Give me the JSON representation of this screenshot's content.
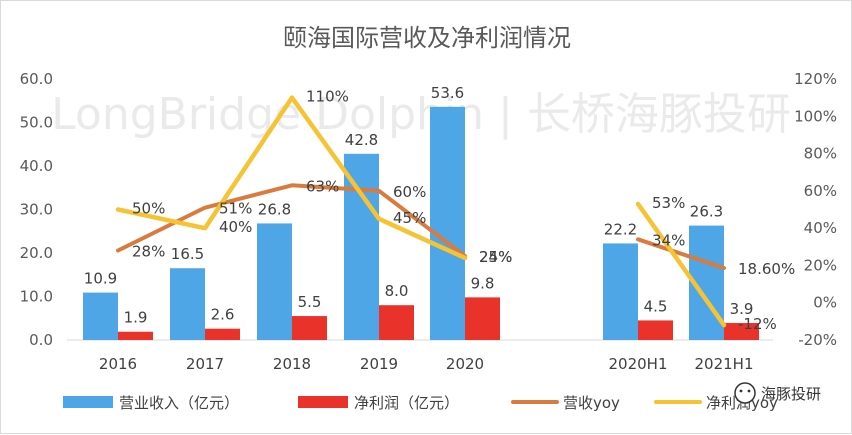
{
  "watermark": "LongBridge Dolphin | 长桥海豚投研",
  "wechat_label": "海豚投研",
  "chart_data": {
    "type": "bar",
    "title": "颐海国际营收及净利润情况",
    "categories": [
      "2016",
      "2017",
      "2018",
      "2019",
      "2020",
      "2020H1",
      "2021H1"
    ],
    "y_left_ticks": [
      "0.0",
      "10.0",
      "20.0",
      "30.0",
      "40.0",
      "50.0",
      "60.0"
    ],
    "y_right_ticks": [
      "-20%",
      "0%",
      "20%",
      "40%",
      "60%",
      "80%",
      "100%",
      "120%"
    ],
    "ylim_left": [
      0,
      60
    ],
    "ylim_right": [
      -20,
      120
    ],
    "series": [
      {
        "name": "营业收入（亿元）",
        "type": "bar",
        "color": "#4ea6e6",
        "values": [
          10.9,
          16.5,
          26.8,
          42.8,
          53.6,
          22.2,
          26.3
        ],
        "labels": [
          "10.9",
          "16.5",
          "26.8",
          "42.8",
          "53.6",
          "22.2",
          "26.3"
        ]
      },
      {
        "name": "净利润（亿元）",
        "type": "bar",
        "color": "#e8322a",
        "values": [
          1.9,
          2.6,
          5.5,
          8.0,
          9.8,
          4.5,
          3.9
        ],
        "labels": [
          "1.9",
          "2.6",
          "5.5",
          "8.0",
          "9.8",
          "4.5",
          "3.9"
        ]
      },
      {
        "name": "营收yoy",
        "type": "line",
        "color": "#d97b3d",
        "segments": [
          [
            0,
            4
          ],
          [
            5,
            6
          ]
        ],
        "values": [
          28,
          51,
          63,
          60,
          25,
          34,
          18.6
        ],
        "labels": [
          "28%",
          "51%",
          "63%",
          "60%",
          "25%",
          "34%",
          "18.60%"
        ]
      },
      {
        "name": "净利润yoy",
        "type": "line",
        "color": "#f5c333",
        "segments": [
          [
            0,
            4
          ],
          [
            5,
            6
          ]
        ],
        "values": [
          50,
          40,
          110,
          45,
          24,
          53,
          -12
        ],
        "labels": [
          "50%",
          "40%",
          "110%",
          "45%",
          "24%",
          "53%",
          "-12%"
        ]
      }
    ],
    "legend": [
      {
        "label": "营业收入（亿元）",
        "color": "#4ea6e6",
        "kind": "bar"
      },
      {
        "label": "净利润（亿元）",
        "color": "#e8322a",
        "kind": "bar"
      },
      {
        "label": "营收yoy",
        "color": "#d97b3d",
        "kind": "line"
      },
      {
        "label": "净利润yoy",
        "color": "#f5c333",
        "kind": "line"
      }
    ],
    "legend_position": "bottom"
  }
}
